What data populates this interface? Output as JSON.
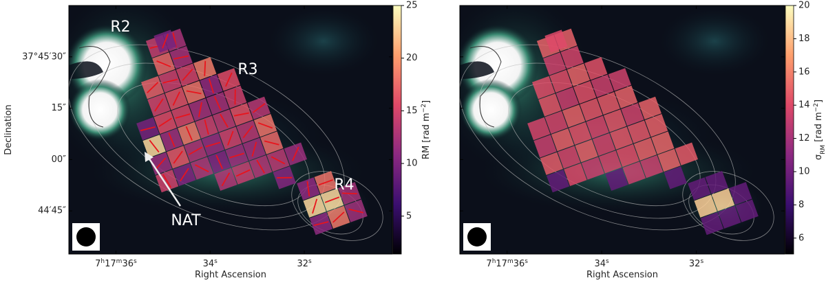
{
  "panels": [
    {
      "xlabel": "Right Ascension",
      "ylabel": "Declination",
      "xlim": [
        37.0,
        30.13
      ],
      "xticks": [
        {
          "value": 36,
          "parts": [
            "7",
            "h",
            "17",
            "m",
            "36",
            "s"
          ]
        },
        {
          "value": 34,
          "parts": [
            "34",
            "s"
          ]
        },
        {
          "value": 32,
          "parts": [
            "32",
            "s"
          ]
        }
      ],
      "ylim": [
        -27.6,
        45
      ],
      "yticks": [
        {
          "value": 30,
          "label": "37°45′30″"
        },
        {
          "value": 15,
          "label": "15″"
        },
        {
          "value": 0,
          "label": "00″"
        },
        {
          "value": -15,
          "label": "44′45″"
        }
      ],
      "colorbar": {
        "label_parts": [
          "RM [rad m",
          "−2",
          "]"
        ],
        "lim": [
          1.4,
          25
        ],
        "ticks": [
          5,
          10,
          15,
          20,
          25
        ]
      },
      "annotations": [
        "R2",
        "R3",
        "R4",
        "NAT"
      ]
    },
    {
      "xlabel": "Right Ascension",
      "xlim": [
        37.0,
        30.13
      ],
      "xticks": [
        {
          "value": 36,
          "parts": [
            "7",
            "h",
            "17",
            "m",
            "36",
            "s"
          ]
        },
        {
          "value": 34,
          "parts": [
            "34",
            "s"
          ]
        },
        {
          "value": 32,
          "parts": [
            "32",
            "s"
          ]
        }
      ],
      "ylim": [
        -27.6,
        45
      ],
      "yticks": [
        30,
        15,
        0,
        -15
      ],
      "colorbar": {
        "label_parts": [
          "σ",
          "RM",
          " [rad m",
          "−2",
          "]"
        ],
        "lim": [
          5.04,
          20
        ],
        "ticks": [
          6,
          8,
          10,
          12,
          14,
          16,
          18,
          20
        ]
      }
    }
  ]
}
